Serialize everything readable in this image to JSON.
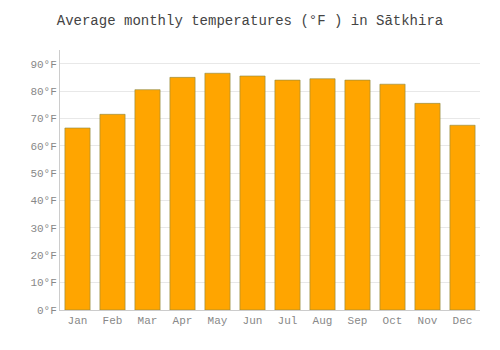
{
  "chart_data": {
    "type": "bar",
    "title": "Average monthly temperatures (°F ) in Sātkhira",
    "categories": [
      "Jan",
      "Feb",
      "Mar",
      "Apr",
      "May",
      "Jun",
      "Jul",
      "Aug",
      "Sep",
      "Oct",
      "Nov",
      "Dec"
    ],
    "values": [
      66.5,
      71.5,
      80.5,
      85.0,
      86.5,
      85.5,
      84.0,
      84.5,
      84.0,
      82.5,
      75.5,
      67.5
    ],
    "color": "#FFA500",
    "ylim": [
      0,
      95
    ],
    "yticks": [
      {
        "value": 0,
        "label": "0°F"
      },
      {
        "value": 10,
        "label": "10°F"
      },
      {
        "value": 20,
        "label": "20°F"
      },
      {
        "value": 30,
        "label": "30°F"
      },
      {
        "value": 40,
        "label": "40°F"
      },
      {
        "value": 50,
        "label": "50°F"
      },
      {
        "value": 60,
        "label": "60°F"
      },
      {
        "value": 70,
        "label": "70°F"
      },
      {
        "value": 80,
        "label": "80°F"
      },
      {
        "value": 90,
        "label": "90°F"
      }
    ],
    "grid": true
  }
}
